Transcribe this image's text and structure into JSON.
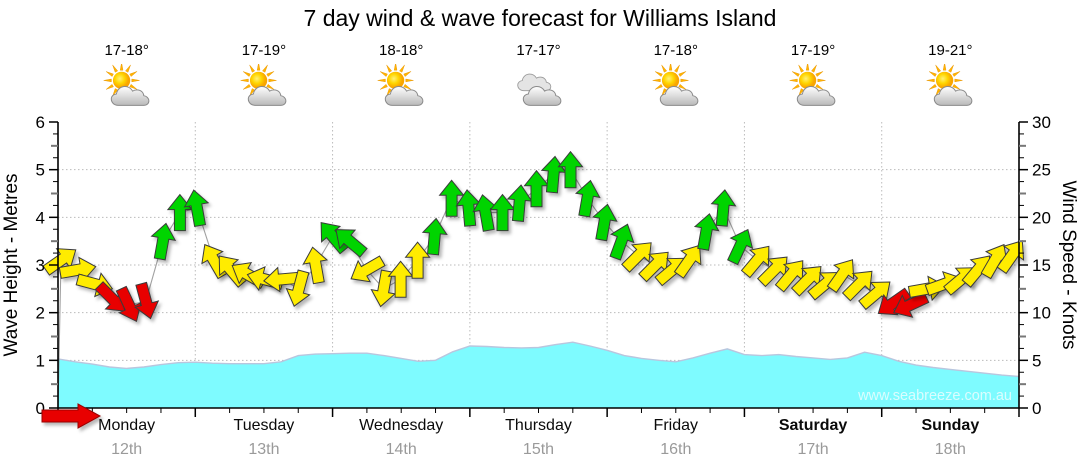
{
  "title": "7 day wind & wave forecast for Williams Island",
  "watermark": "www.seabreeze.com.au",
  "axes": {
    "left_label": "Wave Height - Metres",
    "right_label": "Wind Speed - Knots"
  },
  "days": [
    {
      "name": "Monday",
      "date": "12th",
      "temp": "17-18°",
      "icon": "partly-cloudy",
      "bold": false
    },
    {
      "name": "Tuesday",
      "date": "13th",
      "temp": "17-19°",
      "icon": "partly-cloudy",
      "bold": false
    },
    {
      "name": "Wednesday",
      "date": "14th",
      "temp": "18-18°",
      "icon": "partly-cloudy",
      "bold": false
    },
    {
      "name": "Thursday",
      "date": "15th",
      "temp": "17-17°",
      "icon": "cloudy",
      "bold": false
    },
    {
      "name": "Friday",
      "date": "16th",
      "temp": "17-18°",
      "icon": "partly-cloudy",
      "bold": false
    },
    {
      "name": "Saturday",
      "date": "17th",
      "temp": "17-19°",
      "icon": "partly-cloudy",
      "bold": true
    },
    {
      "name": "Sunday",
      "date": "18th",
      "temp": "19-21°",
      "icon": "partly-cloudy",
      "bold": true
    }
  ],
  "chart_data": {
    "type": "line",
    "title": "7 day wind & wave forecast for Williams Island",
    "x": {
      "unit": "hours",
      "step": 3,
      "days": [
        "Monday 12th",
        "Tuesday 13th",
        "Wednesday 14th",
        "Thursday 15th",
        "Friday 16th",
        "Saturday 17th",
        "Sunday 18th"
      ],
      "points": 57
    },
    "wave_height_metres": {
      "style": "area",
      "axis": "left",
      "ylabel": "Wave Height - Metres",
      "ylim": [
        0,
        6
      ],
      "gridlines": [
        1,
        2,
        3,
        4,
        5
      ],
      "values": [
        1.03,
        0.97,
        0.92,
        0.86,
        0.83,
        0.86,
        0.91,
        0.95,
        0.96,
        0.94,
        0.93,
        0.93,
        0.93,
        0.97,
        1.1,
        1.13,
        1.14,
        1.15,
        1.15,
        1.1,
        1.04,
        0.98,
        1.0,
        1.18,
        1.3,
        1.29,
        1.27,
        1.26,
        1.27,
        1.33,
        1.38,
        1.3,
        1.21,
        1.1,
        1.04,
        1.0,
        0.97,
        1.05,
        1.15,
        1.24,
        1.12,
        1.1,
        1.12,
        1.08,
        1.05,
        1.02,
        1.05,
        1.17,
        1.1,
        0.98,
        0.9,
        0.85,
        0.81,
        0.77,
        0.73,
        0.69,
        0.66
      ]
    },
    "wind_speed_knots": {
      "style": "arrows",
      "axis": "right",
      "ylabel": "Wind Speed - Knots",
      "ylim": [
        0,
        30
      ],
      "gridlines": [
        5,
        10,
        15,
        20,
        25
      ],
      "values": [
        15.5,
        14.5,
        13,
        11.5,
        10.8,
        11.2,
        17.5,
        20.5,
        21,
        15.5,
        14.5,
        14,
        13.5,
        13.5,
        12.5,
        15,
        18,
        17.5,
        14.5,
        12.5,
        13.5,
        15.5,
        18,
        22,
        21,
        20.5,
        20.5,
        21.5,
        23,
        24.5,
        25,
        22,
        19.5,
        17.5,
        16,
        15,
        14.5,
        15.5,
        18.5,
        21,
        17,
        15.5,
        14.5,
        14,
        13.5,
        13,
        14,
        13,
        12,
        11,
        10.8,
        12.5,
        13,
        13.5,
        14.5,
        15.5,
        16
      ]
    },
    "wind_direction_deg": {
      "convention": "direction arrow points toward; 0=up/N, 90=right/E",
      "values": [
        55,
        80,
        105,
        135,
        155,
        165,
        10,
        0,
        350,
        330,
        320,
        300,
        285,
        265,
        195,
        350,
        320,
        310,
        240,
        190,
        0,
        0,
        5,
        0,
        355,
        350,
        0,
        5,
        0,
        5,
        0,
        10,
        10,
        20,
        45,
        45,
        50,
        35,
        10,
        5,
        25,
        40,
        45,
        40,
        45,
        50,
        35,
        45,
        50,
        235,
        245,
        80,
        70,
        50,
        40,
        30,
        35
      ]
    },
    "wind_color_rules": [
      {
        "label": "light",
        "max_kt": 12,
        "color": "#E80000"
      },
      {
        "label": "moderate",
        "max_kt": 17,
        "color": "#FFEC00"
      },
      {
        "label": "fresh",
        "max_kt": 31,
        "color": "#00D400"
      }
    ],
    "wave_fill_color": "#7EFBFF",
    "now_marker_color": "#E80000"
  }
}
